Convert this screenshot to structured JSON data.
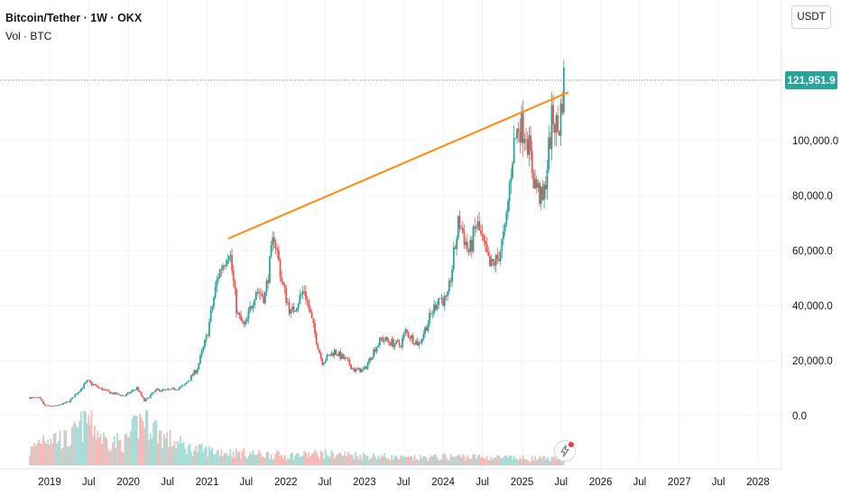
{
  "header": {
    "title": "Bitcoin/Tether · 1W · OKX",
    "volume_label": "Vol · BTC",
    "currency_button": "USDT"
  },
  "price_badge": "121,951.9",
  "colors": {
    "up": "#26a69a",
    "down": "#ef5350",
    "trendline": "#f7931a",
    "grid": "#f0f3fa",
    "last_price_line": "#26a69a"
  },
  "icons": {
    "snapshot": "lightning-icon"
  },
  "chart_data": {
    "type": "candlestick",
    "x_unit": "date",
    "ylim": [
      -5000,
      155000
    ],
    "y_ticks": [
      {
        "value": 0,
        "label": "0.0"
      },
      {
        "value": 20000,
        "label": "20,000.0"
      },
      {
        "value": 40000,
        "label": "40,000.0"
      },
      {
        "value": 60000,
        "label": "60,000.0"
      },
      {
        "value": 80000,
        "label": "80,000.0"
      },
      {
        "value": 100000,
        "label": "100,000.0"
      }
    ],
    "x_ticks": [
      {
        "date": "2019-01-01",
        "label": "2019"
      },
      {
        "date": "2019-07-01",
        "label": "Jul"
      },
      {
        "date": "2020-01-01",
        "label": "2020"
      },
      {
        "date": "2020-07-01",
        "label": "Jul"
      },
      {
        "date": "2021-01-01",
        "label": "2021"
      },
      {
        "date": "2021-07-01",
        "label": "Jul"
      },
      {
        "date": "2022-01-01",
        "label": "2022"
      },
      {
        "date": "2022-07-01",
        "label": "Jul"
      },
      {
        "date": "2023-01-01",
        "label": "2023"
      },
      {
        "date": "2023-07-01",
        "label": "Jul"
      },
      {
        "date": "2024-01-01",
        "label": "2024"
      },
      {
        "date": "2024-07-01",
        "label": "Jul"
      },
      {
        "date": "2025-01-01",
        "label": "2025"
      },
      {
        "date": "2025-07-01",
        "label": "Jul"
      },
      {
        "date": "2026-01-01",
        "label": "2026"
      },
      {
        "date": "2026-07-01",
        "label": "Jul"
      },
      {
        "date": "2027-01-01",
        "label": "2027"
      },
      {
        "date": "2027-07-01",
        "label": "Jul"
      },
      {
        "date": "2028-01-01",
        "label": "2028"
      }
    ],
    "last_price": 121951.9,
    "trendline": {
      "start": {
        "date": "2021-04-12",
        "price": 64500
      },
      "end": {
        "date": "2025-08-01",
        "price": 117500
      }
    },
    "price_path": [
      [
        "2018-10-01",
        6600
      ],
      [
        "2018-11-15",
        6300
      ],
      [
        "2018-12-10",
        3600
      ],
      [
        "2019-02-01",
        3500
      ],
      [
        "2019-04-01",
        5200
      ],
      [
        "2019-06-26",
        12500
      ],
      [
        "2019-08-15",
        10200
      ],
      [
        "2019-10-15",
        8200
      ],
      [
        "2019-12-15",
        7200
      ],
      [
        "2020-02-10",
        10100
      ],
      [
        "2020-03-16",
        5300
      ],
      [
        "2020-05-10",
        9300
      ],
      [
        "2020-07-15",
        9300
      ],
      [
        "2020-09-15",
        10800
      ],
      [
        "2020-11-15",
        17000
      ],
      [
        "2020-12-31",
        29000
      ],
      [
        "2021-02-20",
        51000
      ],
      [
        "2021-04-14",
        61000
      ],
      [
        "2021-05-20",
        37000
      ],
      [
        "2021-06-25",
        32000
      ],
      [
        "2021-08-15",
        46000
      ],
      [
        "2021-09-25",
        43000
      ],
      [
        "2021-11-08",
        66000
      ],
      [
        "2021-12-15",
        48000
      ],
      [
        "2022-01-25",
        37000
      ],
      [
        "2022-03-28",
        46000
      ],
      [
        "2022-05-15",
        30000
      ],
      [
        "2022-06-18",
        19500
      ],
      [
        "2022-08-15",
        23500
      ],
      [
        "2022-10-15",
        19500
      ],
      [
        "2022-11-15",
        16500
      ],
      [
        "2022-12-31",
        16600
      ],
      [
        "2023-02-15",
        24000
      ],
      [
        "2023-03-20",
        28000
      ],
      [
        "2023-06-15",
        25500
      ],
      [
        "2023-07-10",
        30500
      ],
      [
        "2023-09-10",
        26000
      ],
      [
        "2023-10-25",
        34500
      ],
      [
        "2023-12-10",
        43000
      ],
      [
        "2024-01-20",
        41500
      ],
      [
        "2024-03-14",
        71000
      ],
      [
        "2024-05-01",
        59000
      ],
      [
        "2024-06-05",
        70000
      ],
      [
        "2024-08-05",
        54000
      ],
      [
        "2024-09-10",
        57000
      ],
      [
        "2024-10-15",
        67000
      ],
      [
        "2024-11-20",
        97000
      ],
      [
        "2024-12-17",
        106000
      ],
      [
        "2025-01-20",
        104000
      ],
      [
        "2025-02-25",
        86000
      ],
      [
        "2025-04-08",
        77000
      ],
      [
        "2025-05-22",
        109000
      ],
      [
        "2025-06-20",
        103000
      ],
      [
        "2025-07-14",
        122000
      ]
    ],
    "volume": {
      "ylim": [
        0,
        20
      ],
      "path": [
        [
          "2018-10-01",
          5
        ],
        [
          "2018-12-10",
          11
        ],
        [
          "2019-04-01",
          9
        ],
        [
          "2019-06-26",
          17
        ],
        [
          "2019-09-15",
          9
        ],
        [
          "2019-12-15",
          8
        ],
        [
          "2020-03-16",
          18
        ],
        [
          "2020-06-15",
          10
        ],
        [
          "2020-10-15",
          6
        ],
        [
          "2021-02-20",
          5
        ],
        [
          "2021-05-20",
          4.5
        ],
        [
          "2022-01-15",
          3.5
        ],
        [
          "2022-06-18",
          4.2
        ],
        [
          "2023-01-15",
          3.5
        ],
        [
          "2023-07-15",
          2.5
        ],
        [
          "2024-03-14",
          3.2
        ],
        [
          "2024-11-20",
          2.6
        ],
        [
          "2025-07-14",
          2.2
        ]
      ]
    }
  }
}
